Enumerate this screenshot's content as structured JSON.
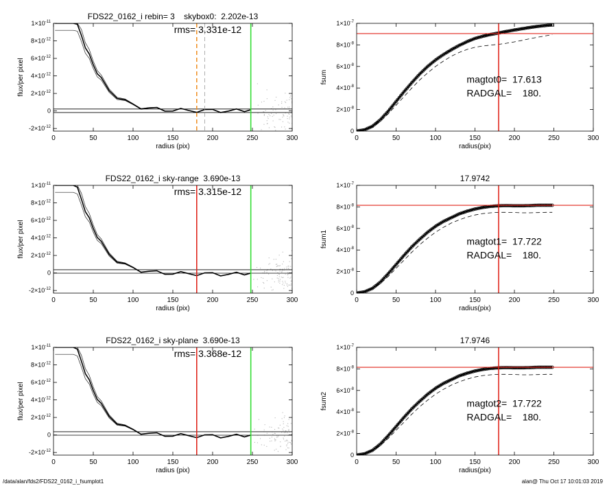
{
  "footer": {
    "left": "/data/alan/fds2/FDS22_0162_i_fsumplot1",
    "right": "alan@  Thu Oct 17 10:01:03 2019"
  },
  "colors": {
    "scatter": "#b4b4b4",
    "profile": "#000000",
    "red": "#e0241b",
    "green": "#33dd33",
    "orange": "#f0922a"
  },
  "chart_data": [
    {
      "type": "scatter",
      "panel": "profile",
      "title": "FDS22_0162_i rebin= 3    skybox0:  2.202e-13",
      "annotation": "rms= 3.331e-12",
      "xlabel": "radius (pix)",
      "ylabel": "flux/per pixel",
      "xlim": [
        0,
        300
      ],
      "ylim": [
        -2.3e-12,
        1e-11
      ],
      "xticks": [
        "0",
        "50",
        "100",
        "150",
        "200",
        "250",
        "300"
      ],
      "yticks": [
        {
          "value": 1e-11,
          "label": "1×10",
          "exp": "-11"
        },
        {
          "value": 8e-12,
          "label": "8×10",
          "exp": "-12"
        },
        {
          "value": 6e-12,
          "label": "6×10",
          "exp": "-12"
        },
        {
          "value": 4e-12,
          "label": "4×10",
          "exp": "-12"
        },
        {
          "value": 2e-12,
          "label": "2×10",
          "exp": "-12"
        },
        {
          "value": 0,
          "label": "0",
          "exp": ""
        },
        {
          "value": -2e-12,
          "label": "-2×10",
          "exp": "-12"
        }
      ],
      "hlines": [
        2.2e-13,
        -1.8e-13
      ],
      "vlines": [
        {
          "x": 180,
          "color": "orange",
          "dash": true
        },
        {
          "x": 190,
          "color": "gray",
          "dash": true
        },
        {
          "x": 248,
          "color": "green",
          "dash": false
        }
      ],
      "profile_x": [
        2,
        5,
        10,
        15,
        20,
        25,
        30,
        35,
        40,
        45,
        50,
        55,
        60,
        70,
        80,
        90,
        100,
        110,
        120,
        130,
        140,
        150,
        160,
        170,
        180,
        190,
        200,
        210,
        220,
        230,
        240,
        248
      ],
      "profile_y": [
        1e-11,
        1e-11,
        1e-11,
        1e-11,
        1e-11,
        1e-11,
        9.9e-12,
        8.6e-12,
        7.4e-12,
        6.3e-12,
        5.3e-12,
        4.4e-12,
        3.6e-12,
        2.4e-12,
        1.6e-12,
        1.1e-12,
        7e-13,
        4.5e-13,
        3e-13,
        2e-13,
        1.3e-13,
        1e-13,
        8e-14,
        6e-14,
        5e-14,
        4e-14,
        3e-14,
        2e-14,
        2e-14,
        1e-14,
        1e-14,
        1e-14
      ]
    },
    {
      "type": "line",
      "panel": "curve",
      "title": "",
      "xlabel": "radius(pix)",
      "ylabel": "fsum",
      "xlim": [
        0,
        300
      ],
      "ylim": [
        0,
        1e-07
      ],
      "xticks": [
        "0",
        "50",
        "100",
        "150",
        "200",
        "250",
        "300"
      ],
      "yticks": [
        {
          "value": 1e-07,
          "label": "1×10",
          "exp": "-7"
        },
        {
          "value": 8e-08,
          "label": "8×10",
          "exp": "-8"
        },
        {
          "value": 6e-08,
          "label": "6×10",
          "exp": "-8"
        },
        {
          "value": 4e-08,
          "label": "4×10",
          "exp": "-8"
        },
        {
          "value": 2e-08,
          "label": "2×10",
          "exp": "-8"
        },
        {
          "value": 0,
          "label": "0",
          "exp": ""
        }
      ],
      "ref_x": 180,
      "ref_y": 9.05e-08,
      "text1": "magtot0=  17.613",
      "text2": "RADGAL=    180.",
      "x": [
        0,
        10,
        20,
        30,
        40,
        50,
        60,
        70,
        80,
        90,
        100,
        110,
        120,
        130,
        140,
        150,
        160,
        170,
        180,
        190,
        200,
        210,
        220,
        230,
        240,
        248
      ],
      "y": [
        0,
        1.2e-09,
        4.5e-09,
        1.05e-08,
        1.85e-08,
        2.75e-08,
        3.65e-08,
        4.5e-08,
        5.3e-08,
        6e-08,
        6.6e-08,
        7.1e-08,
        7.55e-08,
        7.95e-08,
        8.3e-08,
        8.6e-08,
        8.8e-08,
        8.97e-08,
        9.1e-08,
        9.25e-08,
        9.38e-08,
        9.5e-08,
        9.62e-08,
        9.72e-08,
        9.8e-08,
        9.85e-08
      ],
      "y_dashed": [
        0,
        1e-09,
        3.8e-09,
        9e-09,
        1.6e-08,
        2.4e-08,
        3.2e-08,
        4e-08,
        4.75e-08,
        5.4e-08,
        6e-08,
        6.5e-08,
        6.95e-08,
        7.3e-08,
        7.58e-08,
        7.78e-08,
        7.9e-08,
        7.98e-08,
        8.05e-08,
        8.15e-08,
        8.28e-08,
        8.42e-08,
        8.58e-08,
        8.72e-08,
        8.85e-08,
        8.95e-08
      ]
    },
    {
      "type": "scatter",
      "panel": "profile",
      "title": "FDS22_0162_i sky-range  3.690e-13",
      "annotation": "rms= 3.315e-12",
      "xlabel": "radius (pix)",
      "ylabel": "flux/per pixel",
      "xlim": [
        0,
        300
      ],
      "ylim": [
        -2.3e-12,
        1e-11
      ],
      "xticks": [
        "0",
        "50",
        "100",
        "150",
        "200",
        "250",
        "300"
      ],
      "yticks": [
        {
          "value": 1e-11,
          "label": "1×10",
          "exp": "-11"
        },
        {
          "value": 8e-12,
          "label": "8×10",
          "exp": "-12"
        },
        {
          "value": 6e-12,
          "label": "6×10",
          "exp": "-12"
        },
        {
          "value": 4e-12,
          "label": "4×10",
          "exp": "-12"
        },
        {
          "value": 2e-12,
          "label": "2×10",
          "exp": "-12"
        },
        {
          "value": 0,
          "label": "0",
          "exp": ""
        },
        {
          "value": -2e-12,
          "label": "-2×10",
          "exp": "-12"
        }
      ],
      "hlines": [
        3.7e-13,
        -3e-14
      ],
      "vlines": [
        {
          "x": 180,
          "color": "red",
          "dash": false
        },
        {
          "x": 248,
          "color": "green",
          "dash": false
        }
      ],
      "profile_x": [
        2,
        5,
        10,
        15,
        20,
        25,
        30,
        35,
        40,
        45,
        50,
        55,
        60,
        70,
        80,
        90,
        100,
        110,
        120,
        130,
        140,
        150,
        160,
        170,
        180,
        190,
        200,
        210,
        220,
        230,
        240,
        248
      ],
      "profile_y": [
        1e-11,
        1e-11,
        1e-11,
        1e-11,
        1e-11,
        1e-11,
        9.8e-12,
        8.4e-12,
        7.2e-12,
        6.1e-12,
        5.1e-12,
        4.2e-12,
        3.4e-12,
        2.2e-12,
        1.4e-12,
        9e-13,
        5.5e-13,
        3e-13,
        1.5e-13,
        5e-14,
        0,
        -3e-14,
        -6e-14,
        -8e-14,
        -1e-13,
        -1.1e-13,
        -1.2e-13,
        -1.3e-13,
        -1.3e-13,
        -1.4e-13,
        -1.4e-13,
        -1.4e-13
      ]
    },
    {
      "type": "line",
      "panel": "curve",
      "title": "17.9742",
      "xlabel": "radius(pix)",
      "ylabel": "fsum1",
      "xlim": [
        0,
        300
      ],
      "ylim": [
        0,
        1e-07
      ],
      "xticks": [
        "0",
        "50",
        "100",
        "150",
        "200",
        "250",
        "300"
      ],
      "yticks": [
        {
          "value": 1e-07,
          "label": "1×10",
          "exp": "-7"
        },
        {
          "value": 8e-08,
          "label": "8×10",
          "exp": "-8"
        },
        {
          "value": 6e-08,
          "label": "6×10",
          "exp": "-8"
        },
        {
          "value": 4e-08,
          "label": "4×10",
          "exp": "-8"
        },
        {
          "value": 2e-08,
          "label": "2×10",
          "exp": "-8"
        },
        {
          "value": 0,
          "label": "0",
          "exp": ""
        }
      ],
      "ref_x": 180,
      "ref_y": 8.15e-08,
      "text1": "magtot1=  17.722",
      "text2": "RADGAL=    180.",
      "x": [
        0,
        10,
        20,
        30,
        40,
        50,
        60,
        70,
        80,
        90,
        100,
        110,
        120,
        130,
        140,
        150,
        160,
        170,
        180,
        190,
        200,
        210,
        220,
        230,
        240,
        248
      ],
      "y": [
        0,
        1.2e-09,
        4.4e-09,
        1.02e-08,
        1.8e-08,
        2.65e-08,
        3.5e-08,
        4.3e-08,
        5e-08,
        5.65e-08,
        6.2e-08,
        6.65e-08,
        7e-08,
        7.35e-08,
        7.6e-08,
        7.8e-08,
        7.95e-08,
        8.05e-08,
        8.1e-08,
        8.12e-08,
        8.1e-08,
        8.1e-08,
        8.12e-08,
        8.15e-08,
        8.15e-08,
        8.15e-08
      ],
      "y_dashed": [
        0,
        1e-09,
        3.8e-09,
        8.8e-09,
        1.55e-08,
        2.3e-08,
        3.05e-08,
        3.8e-08,
        4.5e-08,
        5.1e-08,
        5.65e-08,
        6.1e-08,
        6.5e-08,
        6.8e-08,
        7.05e-08,
        7.25e-08,
        7.38e-08,
        7.45e-08,
        7.5e-08,
        7.5e-08,
        7.48e-08,
        7.45e-08,
        7.45e-08,
        7.47e-08,
        7.5e-08,
        7.5e-08
      ]
    },
    {
      "type": "scatter",
      "panel": "profile",
      "title": "FDS22_0162_i sky-plane  3.690e-13",
      "annotation": "rms= 3.368e-12",
      "xlabel": "radius (pix)",
      "ylabel": "flux/per pixel",
      "xlim": [
        0,
        300
      ],
      "ylim": [
        -2.3e-12,
        1e-11
      ],
      "xticks": [
        "0",
        "50",
        "100",
        "150",
        "200",
        "250",
        "300"
      ],
      "yticks": [
        {
          "value": 1e-11,
          "label": "1×10",
          "exp": "-11"
        },
        {
          "value": 8e-12,
          "label": "8×10",
          "exp": "-12"
        },
        {
          "value": 6e-12,
          "label": "6×10",
          "exp": "-12"
        },
        {
          "value": 4e-12,
          "label": "4×10",
          "exp": "-12"
        },
        {
          "value": 2e-12,
          "label": "2×10",
          "exp": "-12"
        },
        {
          "value": 0,
          "label": "0",
          "exp": ""
        },
        {
          "value": -2e-12,
          "label": "-2×10",
          "exp": "-12"
        }
      ],
      "hlines": [
        3.7e-13,
        -3e-14
      ],
      "vlines": [
        {
          "x": 180,
          "color": "red",
          "dash": false
        },
        {
          "x": 248,
          "color": "green",
          "dash": false
        }
      ],
      "profile_x": [
        2,
        5,
        10,
        15,
        20,
        25,
        30,
        35,
        40,
        45,
        50,
        55,
        60,
        70,
        80,
        90,
        100,
        110,
        120,
        130,
        140,
        150,
        160,
        170,
        180,
        190,
        200,
        210,
        220,
        230,
        240,
        248
      ],
      "profile_y": [
        1e-11,
        1e-11,
        1e-11,
        1e-11,
        1e-11,
        1e-11,
        9.8e-12,
        8.4e-12,
        7.2e-12,
        6.1e-12,
        5.1e-12,
        4.2e-12,
        3.4e-12,
        2.2e-12,
        1.4e-12,
        9e-13,
        5.5e-13,
        3e-13,
        1.5e-13,
        5e-14,
        0,
        -3e-14,
        -6e-14,
        -8e-14,
        -1e-13,
        -1.1e-13,
        -1.2e-13,
        -1.3e-13,
        -1.3e-13,
        -1.4e-13,
        -1.4e-13,
        -1.4e-13
      ]
    },
    {
      "type": "line",
      "panel": "curve",
      "title": "17.9746",
      "xlabel": "radius(pix)",
      "ylabel": "fsum2",
      "xlim": [
        0,
        300
      ],
      "ylim": [
        0,
        1e-07
      ],
      "xticks": [
        "0",
        "50",
        "100",
        "150",
        "200",
        "250",
        "300"
      ],
      "yticks": [
        {
          "value": 1e-07,
          "label": "1×10",
          "exp": "-7"
        },
        {
          "value": 8e-08,
          "label": "8×10",
          "exp": "-8"
        },
        {
          "value": 6e-08,
          "label": "6×10",
          "exp": "-8"
        },
        {
          "value": 4e-08,
          "label": "4×10",
          "exp": "-8"
        },
        {
          "value": 2e-08,
          "label": "2×10",
          "exp": "-8"
        },
        {
          "value": 0,
          "label": "0",
          "exp": ""
        }
      ],
      "ref_x": 180,
      "ref_y": 8.15e-08,
      "text1": "magtot2=  17.722",
      "text2": "RADGAL=    180.",
      "x": [
        0,
        10,
        20,
        30,
        40,
        50,
        60,
        70,
        80,
        90,
        100,
        110,
        120,
        130,
        140,
        150,
        160,
        170,
        180,
        190,
        200,
        210,
        220,
        230,
        240,
        248
      ],
      "y": [
        0,
        1.2e-09,
        4.4e-09,
        1.02e-08,
        1.8e-08,
        2.65e-08,
        3.5e-08,
        4.3e-08,
        5e-08,
        5.65e-08,
        6.2e-08,
        6.65e-08,
        7e-08,
        7.35e-08,
        7.6e-08,
        7.8e-08,
        7.95e-08,
        8.05e-08,
        8.1e-08,
        8.12e-08,
        8.1e-08,
        8.1e-08,
        8.12e-08,
        8.15e-08,
        8.15e-08,
        8.15e-08
      ],
      "y_dashed": [
        0,
        1e-09,
        3.8e-09,
        8.8e-09,
        1.55e-08,
        2.3e-08,
        3.05e-08,
        3.8e-08,
        4.5e-08,
        5.1e-08,
        5.65e-08,
        6.1e-08,
        6.5e-08,
        6.8e-08,
        7.05e-08,
        7.25e-08,
        7.38e-08,
        7.45e-08,
        7.5e-08,
        7.5e-08,
        7.48e-08,
        7.45e-08,
        7.45e-08,
        7.47e-08,
        7.5e-08,
        7.5e-08
      ]
    }
  ]
}
